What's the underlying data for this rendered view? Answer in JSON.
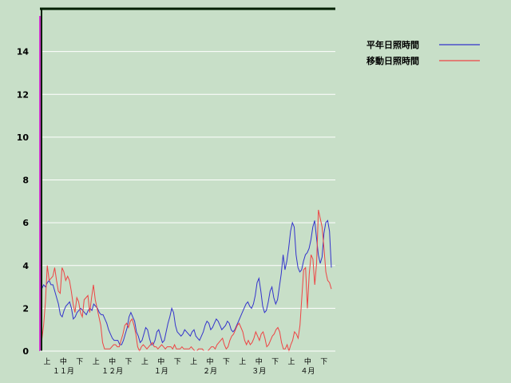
{
  "chart_data": {
    "type": "line",
    "title": "",
    "xlabel": "",
    "ylabel": "",
    "ylim": [
      0,
      16
    ],
    "yticks": [
      0,
      2,
      4,
      6,
      8,
      10,
      12,
      14
    ],
    "grid": true,
    "legend_position": "top-right",
    "x_minor_labels": [
      "上",
      "中",
      "下",
      "上",
      "中",
      "下",
      "上",
      "中",
      "下",
      "上",
      "中",
      "下",
      "上",
      "中",
      "下",
      "上",
      "中",
      "下"
    ],
    "x_month_labels": [
      "１１月",
      "１２月",
      "１月",
      "２月",
      "３月",
      "４月"
    ],
    "series": [
      {
        "name": "平年日照時間",
        "color": "#3333cc",
        "values": [
          0.3,
          2.9,
          3.1,
          3.0,
          3.2,
          3.3,
          3.1,
          3.1,
          2.8,
          2.5,
          2.2,
          1.7,
          1.6,
          1.9,
          2.1,
          2.2,
          2.3,
          2.0,
          1.5,
          1.6,
          1.8,
          1.9,
          2.0,
          1.9,
          1.8,
          1.7,
          1.9,
          2.0,
          1.9,
          2.2,
          2.1,
          2.0,
          1.8,
          1.7,
          1.7,
          1.5,
          1.3,
          1.0,
          0.8,
          0.6,
          0.5,
          0.5,
          0.5,
          0.3,
          0.3,
          0.5,
          0.8,
          1.1,
          1.6,
          1.8,
          1.6,
          1.4,
          0.9,
          0.7,
          0.4,
          0.5,
          0.8,
          1.1,
          1.0,
          0.6,
          0.3,
          0.3,
          0.5,
          0.9,
          1.0,
          0.7,
          0.4,
          0.5,
          0.9,
          1.3,
          1.6,
          2.0,
          1.8,
          1.2,
          0.9,
          0.8,
          0.7,
          0.8,
          1.0,
          0.9,
          0.8,
          0.7,
          0.9,
          1.0,
          0.7,
          0.6,
          0.5,
          0.7,
          0.9,
          1.2,
          1.4,
          1.3,
          1.0,
          1.1,
          1.3,
          1.5,
          1.4,
          1.2,
          1.0,
          1.1,
          1.2,
          1.4,
          1.3,
          1.0,
          0.9,
          1.0,
          1.2,
          1.4,
          1.6,
          1.8,
          2.0,
          2.2,
          2.3,
          2.1,
          2.0,
          2.2,
          2.6,
          3.2,
          3.4,
          2.8,
          2.1,
          1.8,
          1.9,
          2.3,
          2.8,
          3.0,
          2.5,
          2.2,
          2.4,
          3.0,
          3.6,
          4.5,
          3.8,
          4.2,
          4.8,
          5.6,
          6.0,
          5.8,
          4.5,
          3.9,
          3.7,
          3.8,
          4.2,
          4.5,
          4.6,
          4.8,
          5.2,
          5.8,
          6.1,
          5.3,
          4.5,
          4.1,
          4.4,
          5.5,
          6.0,
          6.1,
          5.6,
          3.9
        ]
      },
      {
        "name": "移動日照時間",
        "color": "#ee4444",
        "values": [
          0.0,
          0.5,
          1.2,
          2.3,
          4.0,
          3.3,
          3.4,
          3.5,
          3.9,
          3.3,
          2.8,
          2.7,
          3.9,
          3.7,
          3.3,
          3.5,
          3.3,
          2.8,
          2.2,
          1.8,
          2.5,
          2.3,
          1.8,
          1.6,
          2.4,
          2.5,
          2.6,
          1.8,
          2.5,
          3.1,
          2.4,
          2.0,
          1.6,
          1.2,
          0.4,
          0.1,
          0.1,
          0.1,
          0.1,
          0.2,
          0.3,
          0.3,
          0.2,
          0.2,
          0.5,
          0.8,
          1.2,
          1.3,
          1.1,
          1.4,
          1.5,
          1.2,
          0.8,
          0.2,
          0.0,
          0.2,
          0.3,
          0.2,
          0.1,
          0.2,
          0.3,
          0.4,
          0.2,
          0.2,
          0.1,
          0.2,
          0.3,
          0.2,
          0.1,
          0.2,
          0.2,
          0.2,
          0.1,
          0.3,
          0.1,
          0.1,
          0.1,
          0.2,
          0.1,
          0.1,
          0.1,
          0.1,
          0.2,
          0.1,
          0.0,
          0.0,
          0.1,
          0.1,
          0.1,
          0.0,
          0.0,
          0.0,
          0.1,
          0.2,
          0.2,
          0.1,
          0.3,
          0.4,
          0.5,
          0.6,
          0.3,
          0.1,
          0.2,
          0.5,
          0.7,
          0.8,
          1.0,
          1.2,
          1.3,
          1.1,
          0.9,
          0.5,
          0.3,
          0.5,
          0.3,
          0.4,
          0.6,
          0.9,
          0.7,
          0.5,
          0.8,
          0.9,
          0.6,
          0.2,
          0.3,
          0.5,
          0.7,
          0.8,
          1.0,
          1.1,
          0.9,
          0.4,
          0.1,
          0.1,
          0.3,
          0.0,
          0.3,
          0.5,
          0.9,
          0.8,
          0.6,
          1.2,
          2.5,
          3.8,
          3.9,
          2.0,
          3.6,
          4.5,
          4.3,
          3.1,
          4.1,
          6.6,
          6.2,
          5.8,
          4.8,
          3.7,
          3.3,
          3.2,
          2.9
        ]
      }
    ]
  }
}
